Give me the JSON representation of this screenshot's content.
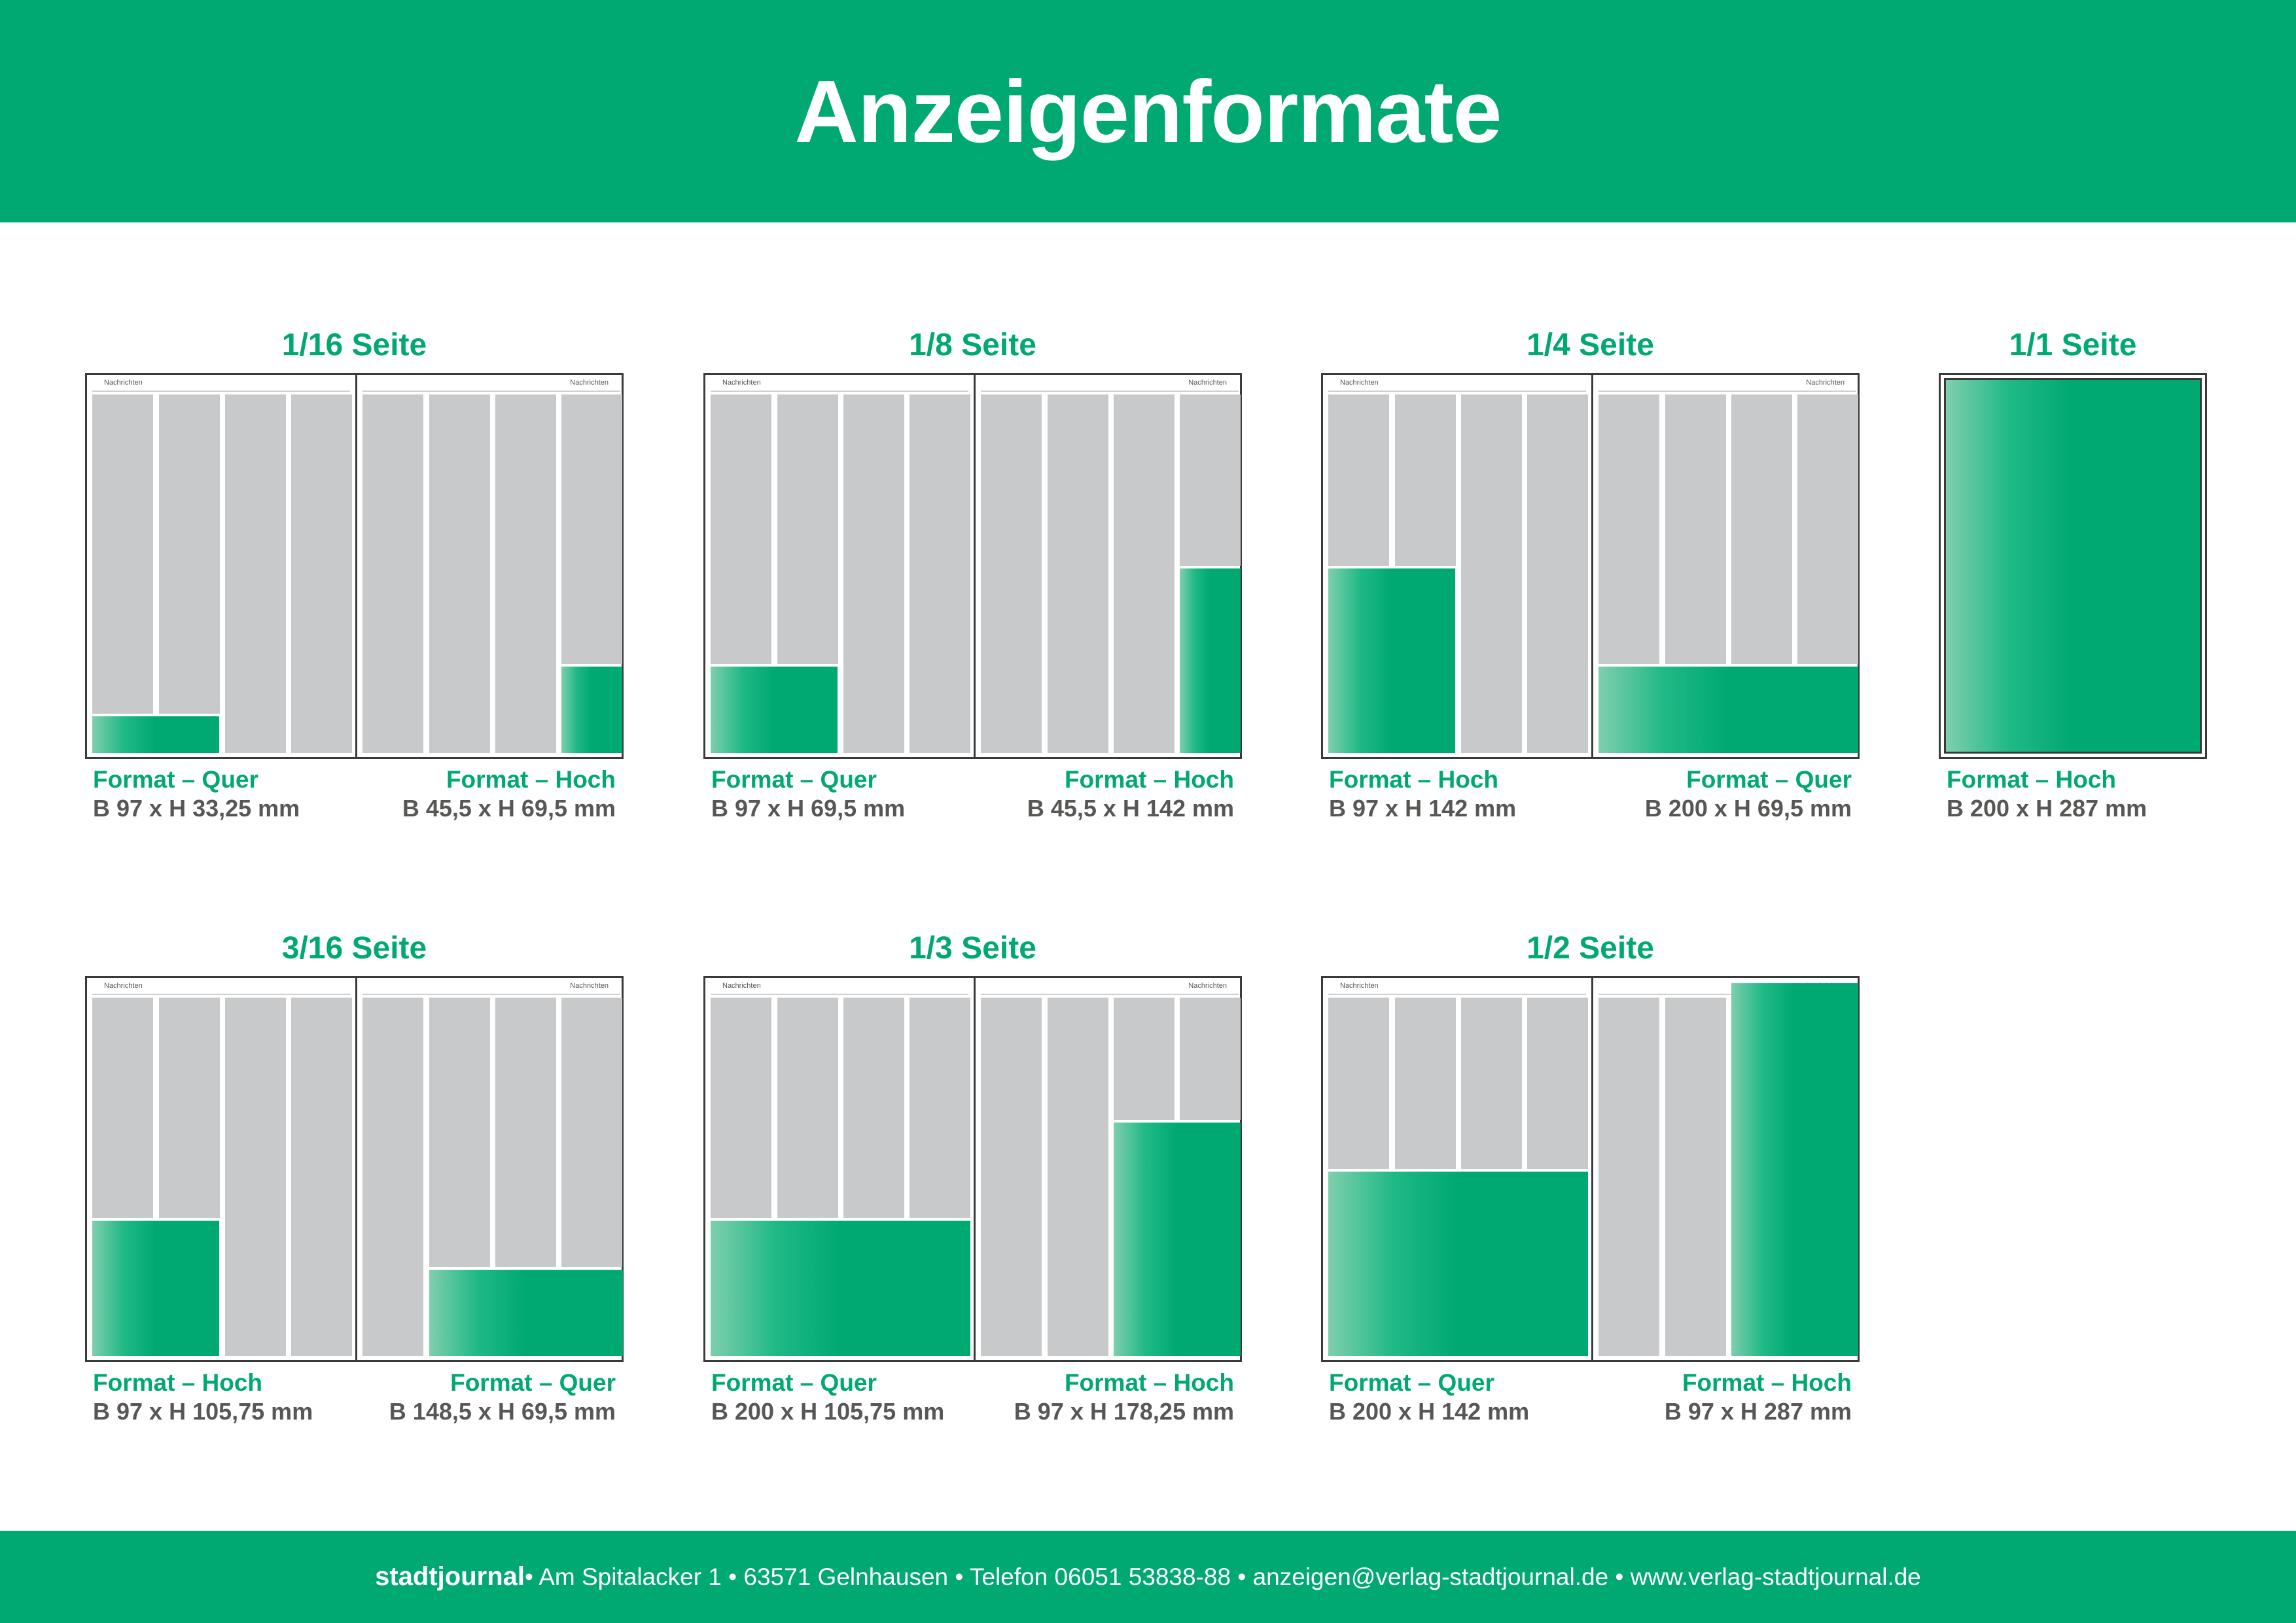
{
  "title": "Anzeigenformate",
  "page_header_label": "Nachrichten",
  "colors": {
    "brand_green": "#00a872",
    "column_gray": "#c8c9cb",
    "text_gray": "#575756"
  },
  "groups": [
    {
      "title": "1/16 Seite",
      "left": {
        "label": "Format – Quer",
        "dims": "B 97 x H 33,25 mm"
      },
      "right": {
        "label": "Format – Hoch",
        "dims": "B 45,5 x H 69,5 mm"
      }
    },
    {
      "title": "1/8 Seite",
      "left": {
        "label": "Format – Quer",
        "dims": "B 97 x H 69,5 mm"
      },
      "right": {
        "label": "Format – Hoch",
        "dims": "B 45,5 x H 142 mm"
      }
    },
    {
      "title": "1/4 Seite",
      "left": {
        "label": "Format – Hoch",
        "dims": "B 97 x H 142 mm"
      },
      "right": {
        "label": "Format – Quer",
        "dims": "B 200 x H 69,5 mm"
      }
    },
    {
      "title": "1/1 Seite",
      "left": {
        "label": "Format – Hoch",
        "dims": "B 200 x H 287 mm"
      }
    },
    {
      "title": "3/16 Seite",
      "left": {
        "label": "Format – Hoch",
        "dims": "B 97 x H 105,75 mm"
      },
      "right": {
        "label": "Format – Quer",
        "dims": "B 148,5 x H 69,5 mm"
      }
    },
    {
      "title": "1/3 Seite",
      "left": {
        "label": "Format – Quer",
        "dims": "B 200 x H 105,75 mm"
      },
      "right": {
        "label": "Format – Hoch",
        "dims": "B 97 x H 178,25 mm"
      }
    },
    {
      "title": "1/2 Seite",
      "left": {
        "label": "Format – Quer",
        "dims": "B 200 x H 142 mm"
      },
      "right": {
        "label": "Format – Hoch",
        "dims": "B 97 x H 287 mm"
      }
    }
  ],
  "footer": {
    "brand": "stadtjournal",
    "text": " • Am Spitalacker 1 • 63571 Gelnhausen • Telefon 06051 53838-88 • anzeigen@verlag-stadtjournal.de • www.verlag-stadtjournal.de"
  }
}
